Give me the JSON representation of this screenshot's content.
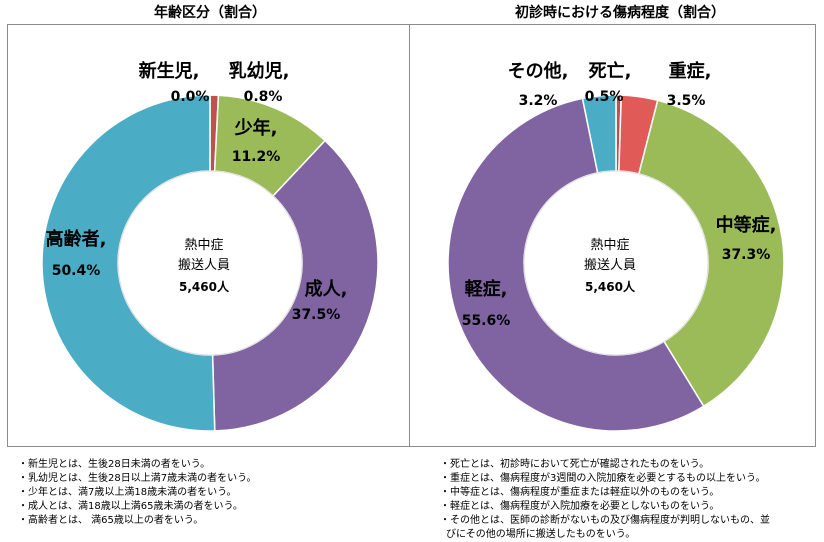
{
  "chart_data": [
    {
      "type": "pie",
      "title": "年齢区分（割合）",
      "center_label": [
        "熱中症",
        "搬送人員",
        "5,460人"
      ],
      "slices": [
        {
          "label": "新生児,",
          "value": 0.0,
          "value_label": "0.0%",
          "color": "#c0504d"
        },
        {
          "label": "乳幼児,",
          "value": 0.8,
          "value_label": "0.8%",
          "color": "#c0504d"
        },
        {
          "label": "少年,",
          "value": 11.2,
          "value_label": "11.2%",
          "color": "#9bbb59"
        },
        {
          "label": "成人,",
          "value": 37.5,
          "value_label": "37.5%",
          "color": "#8064a2"
        },
        {
          "label": "高齢者,",
          "value": 50.4,
          "value_label": "50.4%",
          "color": "#4bacc6"
        }
      ]
    },
    {
      "type": "pie",
      "title": "初診時における傷病程度（割合）",
      "center_label": [
        "熱中症",
        "搬送人員",
        "5,460人"
      ],
      "slices": [
        {
          "label": "死亡,",
          "value": 0.5,
          "value_label": "0.5%",
          "color": "#c0504d"
        },
        {
          "label": "重症,",
          "value": 3.5,
          "value_label": "3.5%",
          "color": "#e05a57"
        },
        {
          "label": "中等症,",
          "value": 37.3,
          "value_label": "37.3%",
          "color": "#9bbb59"
        },
        {
          "label": "軽症,",
          "value": 55.6,
          "value_label": "55.6%",
          "color": "#8064a2"
        },
        {
          "label": "その他,",
          "value": 3.2,
          "value_label": "3.2%",
          "color": "#4bacc6"
        }
      ]
    }
  ],
  "notes_left": [
    "・新生児とは、生後28日未満の者をいう。",
    "・乳幼児とは、生後28日以上満7歳未満の者をいう。",
    "・少年とは、満7歳以上満18歳未満の者をいう。",
    "・成人とは、満18歳以上満65歳未満の者をいう。",
    "・高齢者とは、 満65歳以上の者をいう。"
  ],
  "notes_right": [
    "・死亡とは、初診時において死亡が確認されたものをいう。",
    "・重症とは、傷病程度が3週間の入院加療を必要とするもの以上をいう。",
    "・中等症とは、傷病程度が重症または軽症以外のものをいう。",
    "・軽症とは、傷病程度が入院加療を必要としないものをいう。",
    "・その他とは、医師の診断がないもの及び傷病程度が判明しないもの、並",
    "びにその他の場所に搬送したものをいう。"
  ]
}
